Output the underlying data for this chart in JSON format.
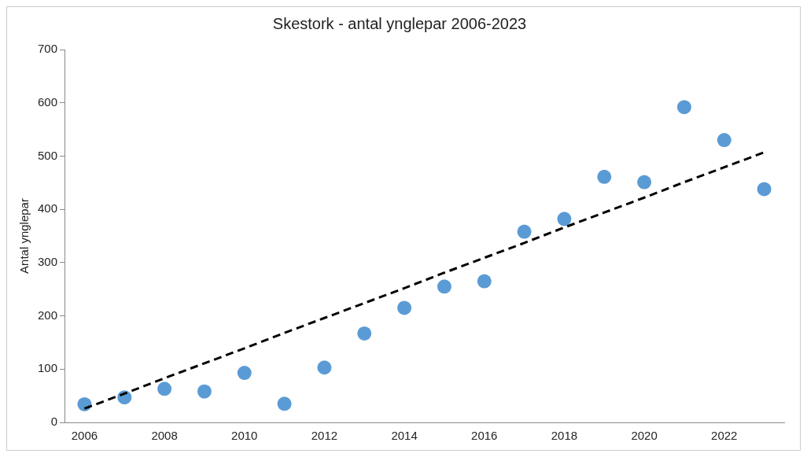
{
  "chart_data": {
    "type": "scatter",
    "title": "Skestork - antal ynglepar 2006-2023",
    "ylabel": "Antal ynglepar",
    "categories": [
      "2006",
      null,
      "2008",
      null,
      "2010",
      null,
      "2012",
      null,
      "2014",
      null,
      "2016",
      null,
      "2018",
      null,
      "2020",
      null,
      "2022",
      null
    ],
    "series": [
      {
        "color": "#5b9bd5",
        "marker": "circle",
        "values": [
          34,
          47,
          63,
          58,
          93,
          35,
          103,
          167,
          215,
          255,
          265,
          358,
          382,
          461,
          451,
          592,
          530,
          438
        ]
      },
      {
        "type": "line",
        "color": "#000000",
        "marker": "none",
        "line_style": "dashed",
        "values": [
          26,
          54,
          83,
          111,
          139,
          168,
          196,
          224,
          252,
          281,
          309,
          337,
          366,
          394,
          422,
          451,
          479,
          507
        ]
      }
    ],
    "ylim": [
      0,
      700
    ],
    "yticks": [
      0,
      100,
      200,
      300,
      400,
      500,
      600,
      700
    ],
    "grid": false,
    "legend": false
  }
}
